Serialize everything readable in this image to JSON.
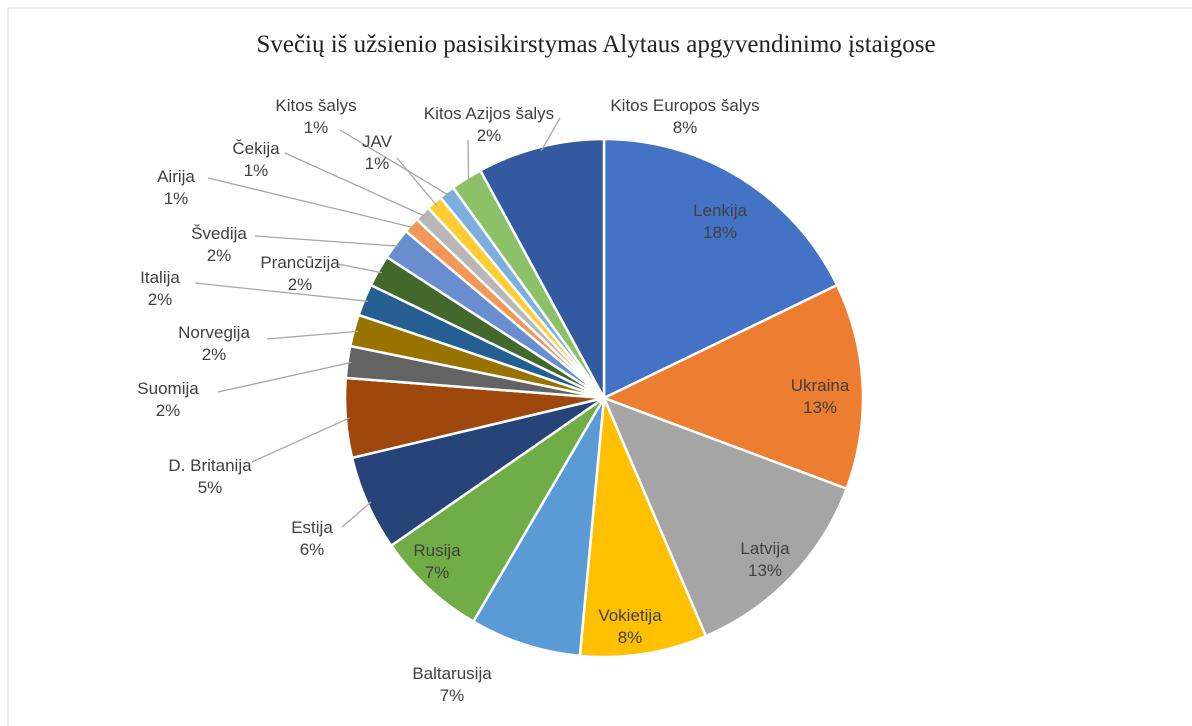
{
  "chart_data": {
    "type": "pie",
    "title": "Svečių iš užsienio pasisikirstymas Alytaus apgyvendinimo įstaigose",
    "categories": [
      "Lenkija",
      "Ukraina",
      "Latvija",
      "Vokietija",
      "Baltarusija",
      "Rusija",
      "Estija",
      "D. Britanija",
      "Suomija",
      "Norvegija",
      "Italija",
      "Prancūzija",
      "Švedija",
      "Airija",
      "Čekija",
      "JAV",
      "Kitos  šalys",
      "Kitos Azijos  šalys",
      "Kitos Europos šalys"
    ],
    "values": [
      18,
      13,
      13,
      8,
      7,
      7,
      6,
      5,
      2,
      2,
      2,
      2,
      2,
      1,
      1,
      1,
      1,
      2,
      8
    ],
    "value_labels": [
      "18%",
      "13%",
      "13%",
      "8%",
      "7%",
      "7%",
      "6%",
      "5%",
      "2%",
      "2%",
      "2%",
      "2%",
      "2%",
      "1%",
      "1%",
      "1%",
      "1%",
      "2%",
      "8%"
    ],
    "colors": [
      "#4472c4",
      "#ed7d31",
      "#a5a5a5",
      "#ffc000",
      "#5b9bd5",
      "#70ad47",
      "#264478",
      "#9e480e",
      "#636363",
      "#997300",
      "#255e91",
      "#43682b",
      "#698ed0",
      "#f1975a",
      "#b7b7b7",
      "#ffcd33",
      "#7cafdd",
      "#8cc168",
      "#335aa1"
    ]
  }
}
